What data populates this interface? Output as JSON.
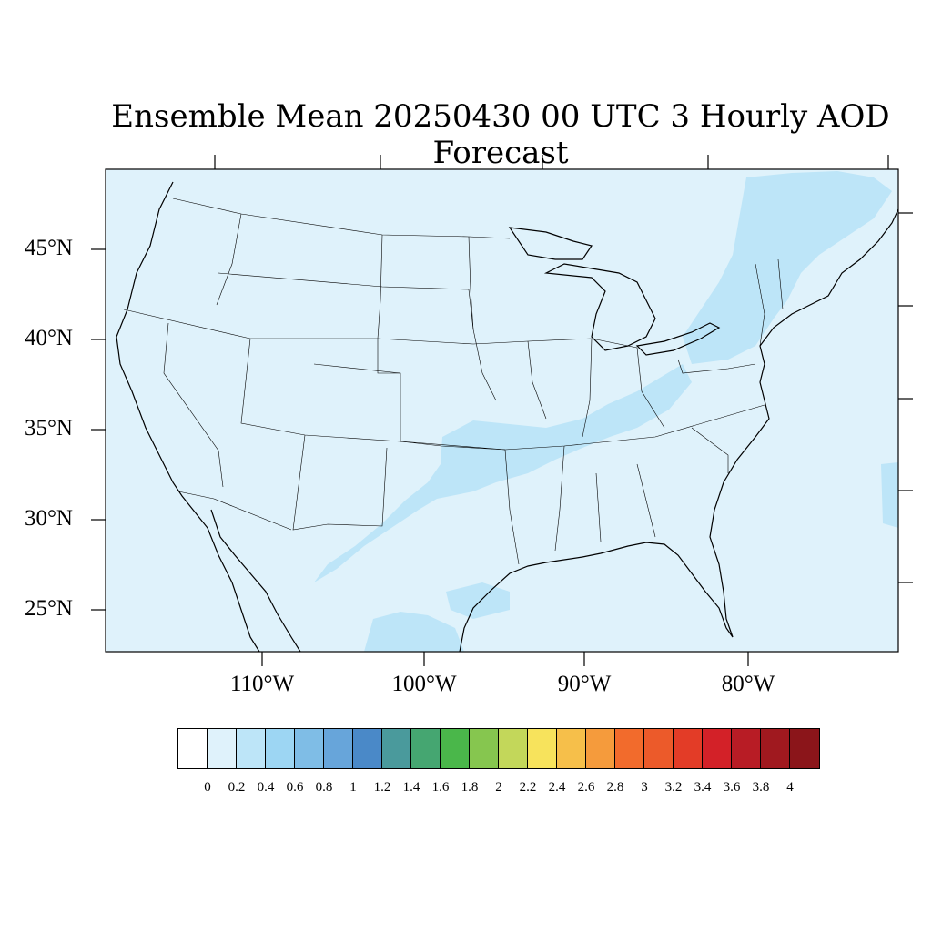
{
  "title": "Ensemble Mean 20250430 00 UTC 3 Hourly AOD Forecast",
  "map": {
    "projection": "lambert-conformal",
    "region": "contiguous-united-states",
    "lat_labels": [
      "45°N",
      "40°N",
      "35°N",
      "30°N",
      "25°N"
    ],
    "lon_labels": [
      "110°W",
      "100°W",
      "90°W",
      "80°W"
    ],
    "background_value_range": "0-0.2",
    "plume_value_range": "0.2-0.4",
    "colors": {
      "background": "#dff2fb",
      "plume": "#bde5f8",
      "border": "#000000"
    }
  },
  "colorbar": {
    "labels": [
      "0",
      "0.2",
      "0.4",
      "0.6",
      "0.8",
      "1",
      "1.2",
      "1.4",
      "1.6",
      "1.8",
      "2",
      "2.2",
      "2.4",
      "2.6",
      "2.8",
      "3",
      "3.2",
      "3.4",
      "3.6",
      "3.8",
      "4"
    ],
    "colors": [
      "#ffffff",
      "#dff2fb",
      "#bde5f8",
      "#9dd6f3",
      "#7fbde6",
      "#67a5da",
      "#4a89c8",
      "#4a9a9c",
      "#45a671",
      "#4ab74a",
      "#86c64f",
      "#c3d75a",
      "#f7e35c",
      "#f6bf4a",
      "#f59b3c",
      "#f26b2c",
      "#ec5a2a",
      "#e33c27",
      "#d32128",
      "#b81c25",
      "#a0191f",
      "#8b151a"
    ]
  }
}
